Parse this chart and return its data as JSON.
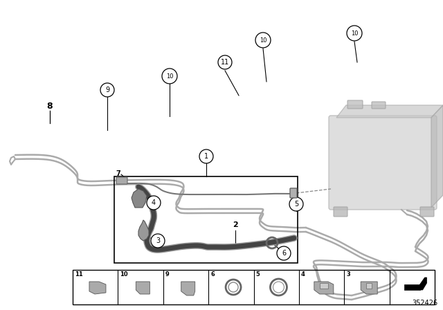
{
  "bg_color": "#ffffff",
  "catalog_number": "352426",
  "pipe_color": "#aaaaaa",
  "pipe_color2": "#999999",
  "hose_color": "#555555",
  "hose_outer_color": "#888888",
  "tank_color": "#cccccc",
  "tank_edge": "#aaaaaa"
}
